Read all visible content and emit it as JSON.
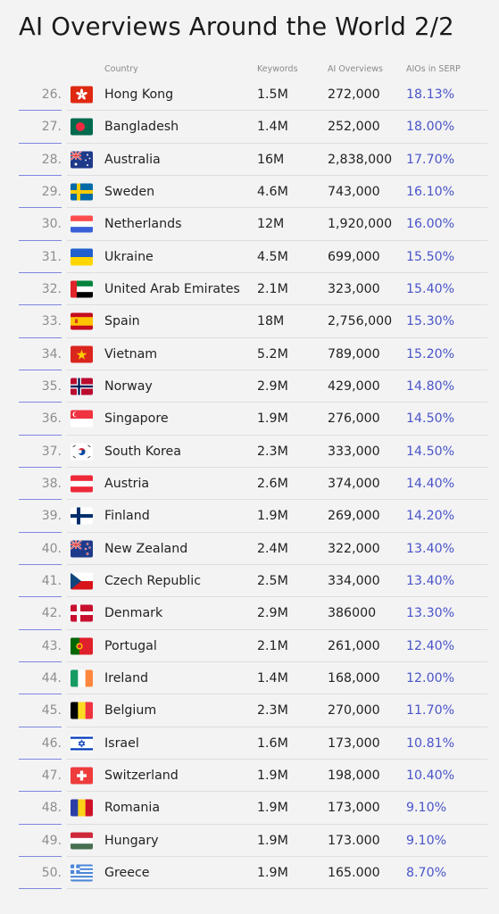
{
  "chart_data": {
    "type": "table",
    "title": "AI Overviews Around the World 2/2",
    "columns": [
      "Country",
      "Keywords",
      "AI Overviews",
      "AIOs in SERP"
    ],
    "rows": [
      {
        "rank": "26.",
        "country": "Hong Kong",
        "keywords": "1.5M",
        "ai_overviews": "272,000",
        "aios_in_serp": "18.13%",
        "flag": "hong-kong-flag-icon"
      },
      {
        "rank": "27.",
        "country": "Bangladesh",
        "keywords": "1.4M",
        "ai_overviews": "252,000",
        "aios_in_serp": "18.00%",
        "flag": "bangladesh-flag-icon"
      },
      {
        "rank": "28.",
        "country": "Australia",
        "keywords": "16M",
        "ai_overviews": "2,838,000",
        "aios_in_serp": "17.70%",
        "flag": "australia-flag-icon"
      },
      {
        "rank": "29.",
        "country": "Sweden",
        "keywords": "4.6M",
        "ai_overviews": "743,000",
        "aios_in_serp": "16.10%",
        "flag": "sweden-flag-icon"
      },
      {
        "rank": "30.",
        "country": "Netherlands",
        "keywords": "12M",
        "ai_overviews": "1,920,000",
        "aios_in_serp": "16.00%",
        "flag": "netherlands-flag-icon"
      },
      {
        "rank": "31.",
        "country": "Ukraine",
        "keywords": "4.5M",
        "ai_overviews": "699,000",
        "aios_in_serp": "15.50%",
        "flag": "ukraine-flag-icon"
      },
      {
        "rank": "32.",
        "country": "United Arab Emirates",
        "keywords": "2.1M",
        "ai_overviews": "323,000",
        "aios_in_serp": "15.40%",
        "flag": "uae-flag-icon"
      },
      {
        "rank": "33.",
        "country": "Spain",
        "keywords": "18M",
        "ai_overviews": "2,756,000",
        "aios_in_serp": "15.30%",
        "flag": "spain-flag-icon"
      },
      {
        "rank": "34.",
        "country": "Vietnam",
        "keywords": "5.2M",
        "ai_overviews": "789,000",
        "aios_in_serp": "15.20%",
        "flag": "vietnam-flag-icon"
      },
      {
        "rank": "35.",
        "country": "Norway",
        "keywords": "2.9M",
        "ai_overviews": "429,000",
        "aios_in_serp": "14.80%",
        "flag": "norway-flag-icon"
      },
      {
        "rank": "36.",
        "country": "Singapore",
        "keywords": "1.9M",
        "ai_overviews": "276,000",
        "aios_in_serp": "14.50%",
        "flag": "singapore-flag-icon"
      },
      {
        "rank": "37.",
        "country": "South Korea",
        "keywords": "2.3M",
        "ai_overviews": "333,000",
        "aios_in_serp": "14.50%",
        "flag": "south-korea-flag-icon"
      },
      {
        "rank": "38.",
        "country": "Austria",
        "keywords": "2.6M",
        "ai_overviews": "374,000",
        "aios_in_serp": "14.40%",
        "flag": "austria-flag-icon"
      },
      {
        "rank": "39.",
        "country": "Finland",
        "keywords": "1.9M",
        "ai_overviews": "269,000",
        "aios_in_serp": "14.20%",
        "flag": "finland-flag-icon"
      },
      {
        "rank": "40.",
        "country": "New Zealand",
        "keywords": "2.4M",
        "ai_overviews": "322,000",
        "aios_in_serp": "13.40%",
        "flag": "new-zealand-flag-icon"
      },
      {
        "rank": "41.",
        "country": "Czech Republic",
        "keywords": "2.5M",
        "ai_overviews": "334,000",
        "aios_in_serp": "13.40%",
        "flag": "czech-flag-icon"
      },
      {
        "rank": "42.",
        "country": "Denmark",
        "keywords": "2.9M",
        "ai_overviews": "386000",
        "aios_in_serp": "13.30%",
        "flag": "denmark-flag-icon"
      },
      {
        "rank": "43.",
        "country": "Portugal",
        "keywords": "2.1M",
        "ai_overviews": "261,000",
        "aios_in_serp": "12.40%",
        "flag": "portugal-flag-icon"
      },
      {
        "rank": "44.",
        "country": "Ireland",
        "keywords": "1.4M",
        "ai_overviews": "168,000",
        "aios_in_serp": "12.00%",
        "flag": "ireland-flag-icon"
      },
      {
        "rank": "45.",
        "country": "Belgium",
        "keywords": "2.3M",
        "ai_overviews": "270,000",
        "aios_in_serp": "11.70%",
        "flag": "belgium-flag-icon"
      },
      {
        "rank": "46.",
        "country": "Israel",
        "keywords": "1.6M",
        "ai_overviews": "173,000",
        "aios_in_serp": "10.81%",
        "flag": "israel-flag-icon"
      },
      {
        "rank": "47.",
        "country": "Switzerland",
        "keywords": "1.9M",
        "ai_overviews": "198,000",
        "aios_in_serp": "10.40%",
        "flag": "switzerland-flag-icon"
      },
      {
        "rank": "48.",
        "country": "Romania",
        "keywords": "1.9M",
        "ai_overviews": "173,000",
        "aios_in_serp": "9.10%",
        "flag": "romania-flag-icon"
      },
      {
        "rank": "49.",
        "country": "Hungary",
        "keywords": "1.9M",
        "ai_overviews": "173.000",
        "aios_in_serp": "9.10%",
        "flag": "hungary-flag-icon"
      },
      {
        "rank": "50.",
        "country": "Greece",
        "keywords": "1.9M",
        "ai_overviews": "165.000",
        "aios_in_serp": "8.70%",
        "flag": "greece-flag-icon"
      }
    ]
  },
  "colors": {
    "background": "#f3f3f4",
    "accent": "#4a55c8",
    "rank_divider": "#7f87df",
    "row_divider": "#dddddf"
  }
}
